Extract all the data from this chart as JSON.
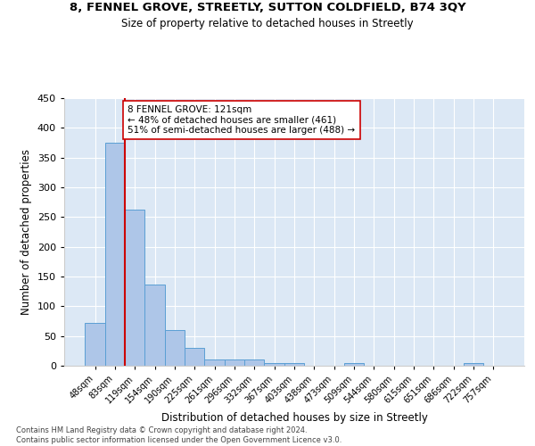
{
  "title": "8, FENNEL GROVE, STREETLY, SUTTON COLDFIELD, B74 3QY",
  "subtitle": "Size of property relative to detached houses in Streetly",
  "xlabel": "Distribution of detached houses by size in Streetly",
  "ylabel": "Number of detached properties",
  "bin_labels": [
    "48sqm",
    "83sqm",
    "119sqm",
    "154sqm",
    "190sqm",
    "225sqm",
    "261sqm",
    "296sqm",
    "332sqm",
    "367sqm",
    "403sqm",
    "438sqm",
    "473sqm",
    "509sqm",
    "544sqm",
    "580sqm",
    "615sqm",
    "651sqm",
    "686sqm",
    "722sqm",
    "757sqm"
  ],
  "bar_heights": [
    72,
    375,
    262,
    136,
    60,
    30,
    10,
    10,
    10,
    5,
    5,
    0,
    0,
    5,
    0,
    0,
    0,
    0,
    0,
    5,
    0
  ],
  "bar_color": "#aec6e8",
  "bar_edge_color": "#5a9fd4",
  "vline_index": 2,
  "vline_color": "#cc0000",
  "annotation_text": "8 FENNEL GROVE: 121sqm\n← 48% of detached houses are smaller (461)\n51% of semi-detached houses are larger (488) →",
  "annotation_box_color": "#ffffff",
  "annotation_box_edge": "#cc0000",
  "ylim": [
    0,
    450
  ],
  "yticks": [
    0,
    50,
    100,
    150,
    200,
    250,
    300,
    350,
    400,
    450
  ],
  "bg_color": "#dce8f5",
  "footer": "Contains HM Land Registry data © Crown copyright and database right 2024.\nContains public sector information licensed under the Open Government Licence v3.0."
}
